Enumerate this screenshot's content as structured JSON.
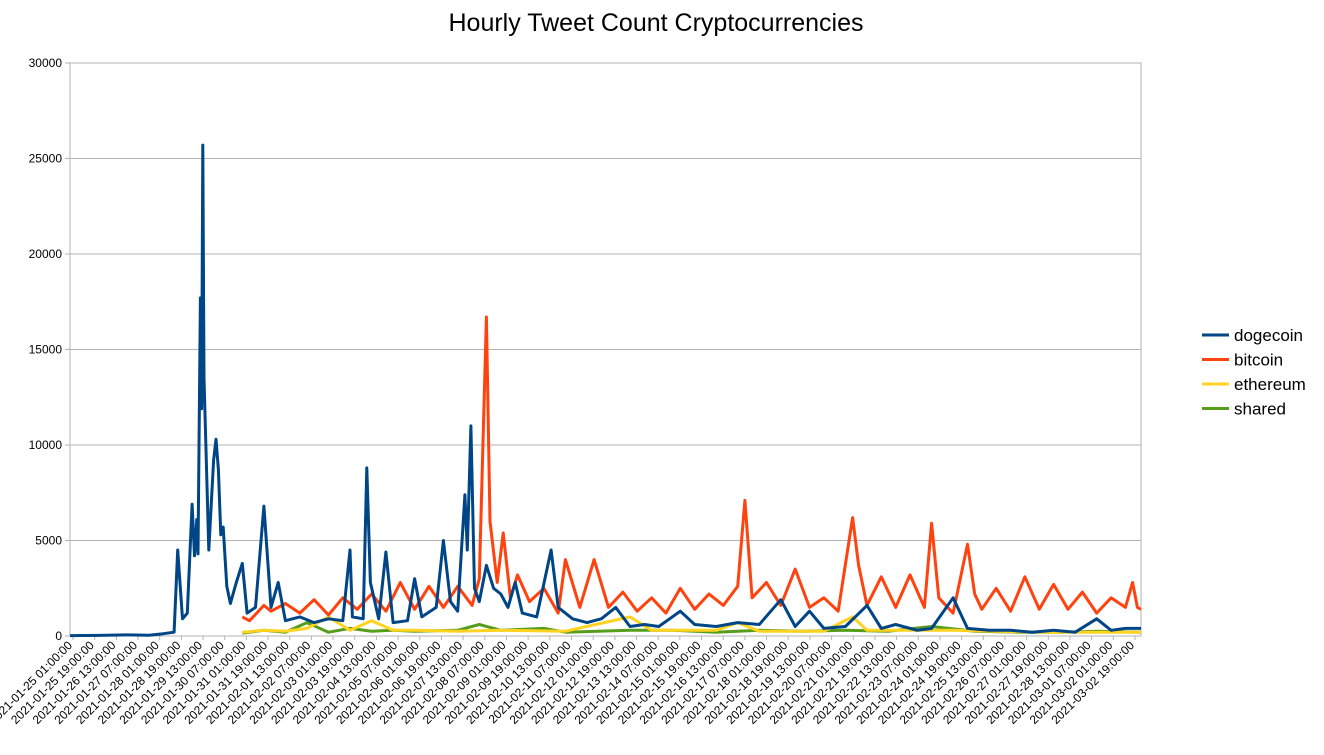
{
  "chart_data": {
    "type": "line",
    "title": "Hourly Tweet Count Cryptocurrencies",
    "xlabel": "",
    "ylabel": "",
    "ylim": [
      0,
      30000
    ],
    "yticks": [
      0,
      5000,
      10000,
      15000,
      20000,
      25000,
      30000
    ],
    "grid": "horizontal",
    "legend_position": "right",
    "x_tick_labels": [
      "2021-01-25 01:00:00",
      "2021-01-25 19:00:00",
      "2021-01-26 13:00:00",
      "2021-01-27 07:00:00",
      "2021-01-28 01:00:00",
      "2021-01-28 19:00:00",
      "2021-01-29 13:00:00",
      "2021-01-30 07:00:00",
      "2021-01-31 01:00:00",
      "2021-01-31 19:00:00",
      "2021-02-01 13:00:00",
      "2021-02-02 07:00:00",
      "2021-02-03 01:00:00",
      "2021-02-03 19:00:00",
      "2021-02-04 13:00:00",
      "2021-02-05 07:00:00",
      "2021-02-06 01:00:00",
      "2021-02-06 19:00:00",
      "2021-02-07 13:00:00",
      "2021-02-08 07:00:00",
      "2021-02-09 01:00:00",
      "2021-02-09 19:00:00",
      "2021-02-10 13:00:00",
      "2021-02-11 07:00:00",
      "2021-02-12 01:00:00",
      "2021-02-12 19:00:00",
      "2021-02-13 13:00:00",
      "2021-02-14 07:00:00",
      "2021-02-15 01:00:00",
      "2021-02-15 19:00:00",
      "2021-02-16 13:00:00",
      "2021-02-17 07:00:00",
      "2021-02-18 01:00:00",
      "2021-02-18 19:00:00",
      "2021-02-19 13:00:00",
      "2021-02-20 07:00:00",
      "2021-02-21 01:00:00",
      "2021-02-21 19:00:00",
      "2021-02-22 13:00:00",
      "2021-02-23 07:00:00",
      "2021-02-24 01:00:00",
      "2021-02-24 19:00:00",
      "2021-02-25 13:00:00",
      "2021-02-26 07:00:00",
      "2021-02-27 01:00:00",
      "2021-02-27 19:00:00",
      "2021-02-28 13:00:00",
      "2021-03-01 07:00:00",
      "2021-03-02 01:00:00",
      "2021-03-02 19:00:00"
    ],
    "x_range": [
      "2021-01-25 01:00:00",
      "2021-03-03 08:00:00"
    ],
    "series": [
      {
        "name": "dogecoin",
        "color": "#004586",
        "points": [
          [
            "2021-01-25 01:00",
            20
          ],
          [
            "2021-01-26 01:00",
            30
          ],
          [
            "2021-01-27 01:00",
            60
          ],
          [
            "2021-01-27 19:00",
            40
          ],
          [
            "2021-01-28 07:00",
            120
          ],
          [
            "2021-01-28 16:00",
            200
          ],
          [
            "2021-01-28 19:00",
            4500
          ],
          [
            "2021-01-28 23:00",
            900
          ],
          [
            "2021-01-29 03:00",
            1200
          ],
          [
            "2021-01-29 07:00",
            6900
          ],
          [
            "2021-01-29 09:00",
            4200
          ],
          [
            "2021-01-29 11:00",
            6100
          ],
          [
            "2021-01-29 12:00",
            4300
          ],
          [
            "2021-01-29 14:00",
            17700
          ],
          [
            "2021-01-29 15:00",
            11900
          ],
          [
            "2021-01-29 16:00",
            25700
          ],
          [
            "2021-01-29 17:00",
            13500
          ],
          [
            "2021-01-29 21:00",
            4500
          ],
          [
            "2021-01-30 01:00",
            9200
          ],
          [
            "2021-01-30 03:00",
            10300
          ],
          [
            "2021-01-30 05:00",
            8700
          ],
          [
            "2021-01-30 07:00",
            5300
          ],
          [
            "2021-01-30 09:00",
            5700
          ],
          [
            "2021-01-30 12:00",
            2600
          ],
          [
            "2021-01-30 15:00",
            1700
          ],
          [
            "2021-01-30 20:00",
            2800
          ],
          [
            "2021-01-31 01:00",
            3800
          ],
          [
            "2021-01-31 05:00",
            1200
          ],
          [
            "2021-01-31 12:00",
            1500
          ],
          [
            "2021-01-31 19:00",
            6800
          ],
          [
            "2021-02-01 01:00",
            1500
          ],
          [
            "2021-02-01 07:00",
            2800
          ],
          [
            "2021-02-01 13:00",
            800
          ],
          [
            "2021-02-02 01:00",
            1000
          ],
          [
            "2021-02-02 13:00",
            700
          ],
          [
            "2021-02-03 01:00",
            900
          ],
          [
            "2021-02-03 13:00",
            800
          ],
          [
            "2021-02-03 19:00",
            4500
          ],
          [
            "2021-02-03 21:00",
            1000
          ],
          [
            "2021-02-04 06:00",
            900
          ],
          [
            "2021-02-04 09:00",
            8800
          ],
          [
            "2021-02-04 12:00",
            2800
          ],
          [
            "2021-02-04 19:00",
            900
          ],
          [
            "2021-02-05 01:00",
            4400
          ],
          [
            "2021-02-05 07:00",
            700
          ],
          [
            "2021-02-05 19:00",
            800
          ],
          [
            "2021-02-06 01:00",
            3000
          ],
          [
            "2021-02-06 07:00",
            1000
          ],
          [
            "2021-02-06 19:00",
            1500
          ],
          [
            "2021-02-07 01:00",
            5000
          ],
          [
            "2021-02-07 07:00",
            1800
          ],
          [
            "2021-02-07 13:00",
            1300
          ],
          [
            "2021-02-07 19:00",
            7400
          ],
          [
            "2021-02-07 21:00",
            4500
          ],
          [
            "2021-02-08 00:00",
            11000
          ],
          [
            "2021-02-08 03:00",
            2500
          ],
          [
            "2021-02-08 07:00",
            1800
          ],
          [
            "2021-02-08 13:00",
            3700
          ],
          [
            "2021-02-08 19:00",
            2500
          ],
          [
            "2021-02-09 01:00",
            2200
          ],
          [
            "2021-02-09 07:00",
            1500
          ],
          [
            "2021-02-09 13:00",
            2800
          ],
          [
            "2021-02-09 19:00",
            1200
          ],
          [
            "2021-02-10 07:00",
            1000
          ],
          [
            "2021-02-10 19:00",
            4500
          ],
          [
            "2021-02-11 01:00",
            1500
          ],
          [
            "2021-02-11 13:00",
            900
          ],
          [
            "2021-02-12 01:00",
            700
          ],
          [
            "2021-02-12 13:00",
            900
          ],
          [
            "2021-02-13 01:00",
            1500
          ],
          [
            "2021-02-13 13:00",
            500
          ],
          [
            "2021-02-14 01:00",
            600
          ],
          [
            "2021-02-14 13:00",
            500
          ],
          [
            "2021-02-15 07:00",
            1300
          ],
          [
            "2021-02-15 19:00",
            600
          ],
          [
            "2021-02-16 13:00",
            500
          ],
          [
            "2021-02-17 07:00",
            700
          ],
          [
            "2021-02-18 01:00",
            600
          ],
          [
            "2021-02-18 19:00",
            1900
          ],
          [
            "2021-02-19 07:00",
            500
          ],
          [
            "2021-02-19 19:00",
            1300
          ],
          [
            "2021-02-20 07:00",
            400
          ],
          [
            "2021-02-21 01:00",
            500
          ],
          [
            "2021-02-21 19:00",
            1600
          ],
          [
            "2021-02-22 07:00",
            400
          ],
          [
            "2021-02-22 19:00",
            600
          ],
          [
            "2021-02-23 13:00",
            300
          ],
          [
            "2021-02-24 01:00",
            400
          ],
          [
            "2021-02-24 19:00",
            2000
          ],
          [
            "2021-02-25 07:00",
            400
          ],
          [
            "2021-02-26 01:00",
            300
          ],
          [
            "2021-02-26 19:00",
            300
          ],
          [
            "2021-02-27 13:00",
            200
          ],
          [
            "2021-02-28 07:00",
            300
          ],
          [
            "2021-03-01 01:00",
            200
          ],
          [
            "2021-03-01 19:00",
            900
          ],
          [
            "2021-03-02 07:00",
            300
          ],
          [
            "2021-03-02 19:00",
            400
          ],
          [
            "2021-03-03 08:00",
            400
          ]
        ]
      },
      {
        "name": "bitcoin",
        "color": "#ff420e",
        "points": [
          [
            "2021-01-31 01:00",
            1000
          ],
          [
            "2021-01-31 07:00",
            800
          ],
          [
            "2021-01-31 13:00",
            1200
          ],
          [
            "2021-01-31 19:00",
            1600
          ],
          [
            "2021-02-01 01:00",
            1300
          ],
          [
            "2021-02-01 13:00",
            1700
          ],
          [
            "2021-02-02 01:00",
            1200
          ],
          [
            "2021-02-02 13:00",
            1900
          ],
          [
            "2021-02-03 01:00",
            1100
          ],
          [
            "2021-02-03 13:00",
            2000
          ],
          [
            "2021-02-04 01:00",
            1400
          ],
          [
            "2021-02-04 13:00",
            2200
          ],
          [
            "2021-02-05 01:00",
            1300
          ],
          [
            "2021-02-05 13:00",
            2800
          ],
          [
            "2021-02-06 01:00",
            1400
          ],
          [
            "2021-02-06 13:00",
            2600
          ],
          [
            "2021-02-07 01:00",
            1500
          ],
          [
            "2021-02-07 13:00",
            2600
          ],
          [
            "2021-02-08 01:00",
            1600
          ],
          [
            "2021-02-08 07:00",
            3000
          ],
          [
            "2021-02-08 13:00",
            16700
          ],
          [
            "2021-02-08 16:00",
            6000
          ],
          [
            "2021-02-08 22:00",
            2800
          ],
          [
            "2021-02-09 03:00",
            5400
          ],
          [
            "2021-02-09 09:00",
            2000
          ],
          [
            "2021-02-09 15:00",
            3200
          ],
          [
            "2021-02-10 01:00",
            1800
          ],
          [
            "2021-02-10 13:00",
            2500
          ],
          [
            "2021-02-11 01:00",
            1200
          ],
          [
            "2021-02-11 07:00",
            4000
          ],
          [
            "2021-02-11 19:00",
            1500
          ],
          [
            "2021-02-12 07:00",
            4000
          ],
          [
            "2021-02-12 19:00",
            1500
          ],
          [
            "2021-02-13 07:00",
            2300
          ],
          [
            "2021-02-13 19:00",
            1300
          ],
          [
            "2021-02-14 07:00",
            2000
          ],
          [
            "2021-02-14 19:00",
            1200
          ],
          [
            "2021-02-15 07:00",
            2500
          ],
          [
            "2021-02-15 19:00",
            1400
          ],
          [
            "2021-02-16 07:00",
            2200
          ],
          [
            "2021-02-16 19:00",
            1600
          ],
          [
            "2021-02-17 07:00",
            2600
          ],
          [
            "2021-02-17 13:00",
            7100
          ],
          [
            "2021-02-17 19:00",
            2000
          ],
          [
            "2021-02-18 07:00",
            2800
          ],
          [
            "2021-02-18 19:00",
            1600
          ],
          [
            "2021-02-19 07:00",
            3500
          ],
          [
            "2021-02-19 19:00",
            1500
          ],
          [
            "2021-02-20 07:00",
            2000
          ],
          [
            "2021-02-20 19:00",
            1300
          ],
          [
            "2021-02-21 07:00",
            6200
          ],
          [
            "2021-02-21 12:00",
            3700
          ],
          [
            "2021-02-21 19:00",
            1600
          ],
          [
            "2021-02-22 07:00",
            3100
          ],
          [
            "2021-02-22 19:00",
            1500
          ],
          [
            "2021-02-23 07:00",
            3200
          ],
          [
            "2021-02-23 19:00",
            1500
          ],
          [
            "2021-02-24 01:00",
            5900
          ],
          [
            "2021-02-24 07:00",
            2000
          ],
          [
            "2021-02-24 19:00",
            1200
          ],
          [
            "2021-02-25 07:00",
            4800
          ],
          [
            "2021-02-25 13:00",
            2200
          ],
          [
            "2021-02-25 19:00",
            1400
          ],
          [
            "2021-02-26 07:00",
            2500
          ],
          [
            "2021-02-26 19:00",
            1300
          ],
          [
            "2021-02-27 07:00",
            3100
          ],
          [
            "2021-02-27 19:00",
            1400
          ],
          [
            "2021-02-28 07:00",
            2700
          ],
          [
            "2021-02-28 19:00",
            1400
          ],
          [
            "2021-03-01 07:00",
            2300
          ],
          [
            "2021-03-01 19:00",
            1200
          ],
          [
            "2021-03-02 07:00",
            2000
          ],
          [
            "2021-03-02 19:00",
            1500
          ],
          [
            "2021-03-03 01:00",
            2800
          ],
          [
            "2021-03-03 05:00",
            1500
          ],
          [
            "2021-03-03 08:00",
            1400
          ]
        ]
      },
      {
        "name": "ethereum",
        "color": "#ffd320",
        "points": [
          [
            "2021-01-31 01:00",
            200
          ],
          [
            "2021-01-31 19:00",
            300
          ],
          [
            "2021-02-01 13:00",
            250
          ],
          [
            "2021-02-02 07:00",
            400
          ],
          [
            "2021-02-03 01:00",
            1000
          ],
          [
            "2021-02-03 19:00",
            300
          ],
          [
            "2021-02-04 13:00",
            800
          ],
          [
            "2021-02-05 07:00",
            300
          ],
          [
            "2021-02-06 01:00",
            300
          ],
          [
            "2021-02-07 13:00",
            250
          ],
          [
            "2021-02-09 01:00",
            300
          ],
          [
            "2021-02-11 07:00",
            250
          ],
          [
            "2021-02-13 13:00",
            1000
          ],
          [
            "2021-02-14 07:00",
            300
          ],
          [
            "2021-02-16 13:00",
            300
          ],
          [
            "2021-02-17 07:00",
            700
          ],
          [
            "2021-02-18 01:00",
            250
          ],
          [
            "2021-02-20 07:00",
            250
          ],
          [
            "2021-02-21 07:00",
            1000
          ],
          [
            "2021-02-21 19:00",
            300
          ],
          [
            "2021-02-24 19:00",
            300
          ],
          [
            "2021-02-27 19:00",
            200
          ],
          [
            "2021-03-01 07:00",
            200
          ],
          [
            "2021-03-03 08:00",
            200
          ]
        ]
      },
      {
        "name": "shared",
        "color": "#579d1c",
        "points": [
          [
            "2021-01-31 01:00",
            150
          ],
          [
            "2021-01-31 19:00",
            300
          ],
          [
            "2021-02-01 13:00",
            200
          ],
          [
            "2021-02-02 07:00",
            700
          ],
          [
            "2021-02-03 01:00",
            200
          ],
          [
            "2021-02-03 19:00",
            400
          ],
          [
            "2021-02-04 13:00",
            250
          ],
          [
            "2021-02-05 07:00",
            300
          ],
          [
            "2021-02-06 01:00",
            250
          ],
          [
            "2021-02-07 13:00",
            300
          ],
          [
            "2021-02-08 07:00",
            600
          ],
          [
            "2021-02-09 01:00",
            300
          ],
          [
            "2021-02-10 13:00",
            400
          ],
          [
            "2021-02-11 07:00",
            200
          ],
          [
            "2021-02-13 13:00",
            300
          ],
          [
            "2021-02-15 01:00",
            300
          ],
          [
            "2021-02-16 13:00",
            200
          ],
          [
            "2021-02-18 01:00",
            300
          ],
          [
            "2021-02-19 13:00",
            250
          ],
          [
            "2021-02-21 01:00",
            300
          ],
          [
            "2021-02-22 13:00",
            250
          ],
          [
            "2021-02-24 01:00",
            500
          ],
          [
            "2021-02-25 13:00",
            250
          ],
          [
            "2021-02-27 01:00",
            200
          ],
          [
            "2021-02-28 13:00",
            200
          ],
          [
            "2021-03-01 19:00",
            250
          ],
          [
            "2021-03-03 08:00",
            200
          ]
        ]
      }
    ]
  }
}
